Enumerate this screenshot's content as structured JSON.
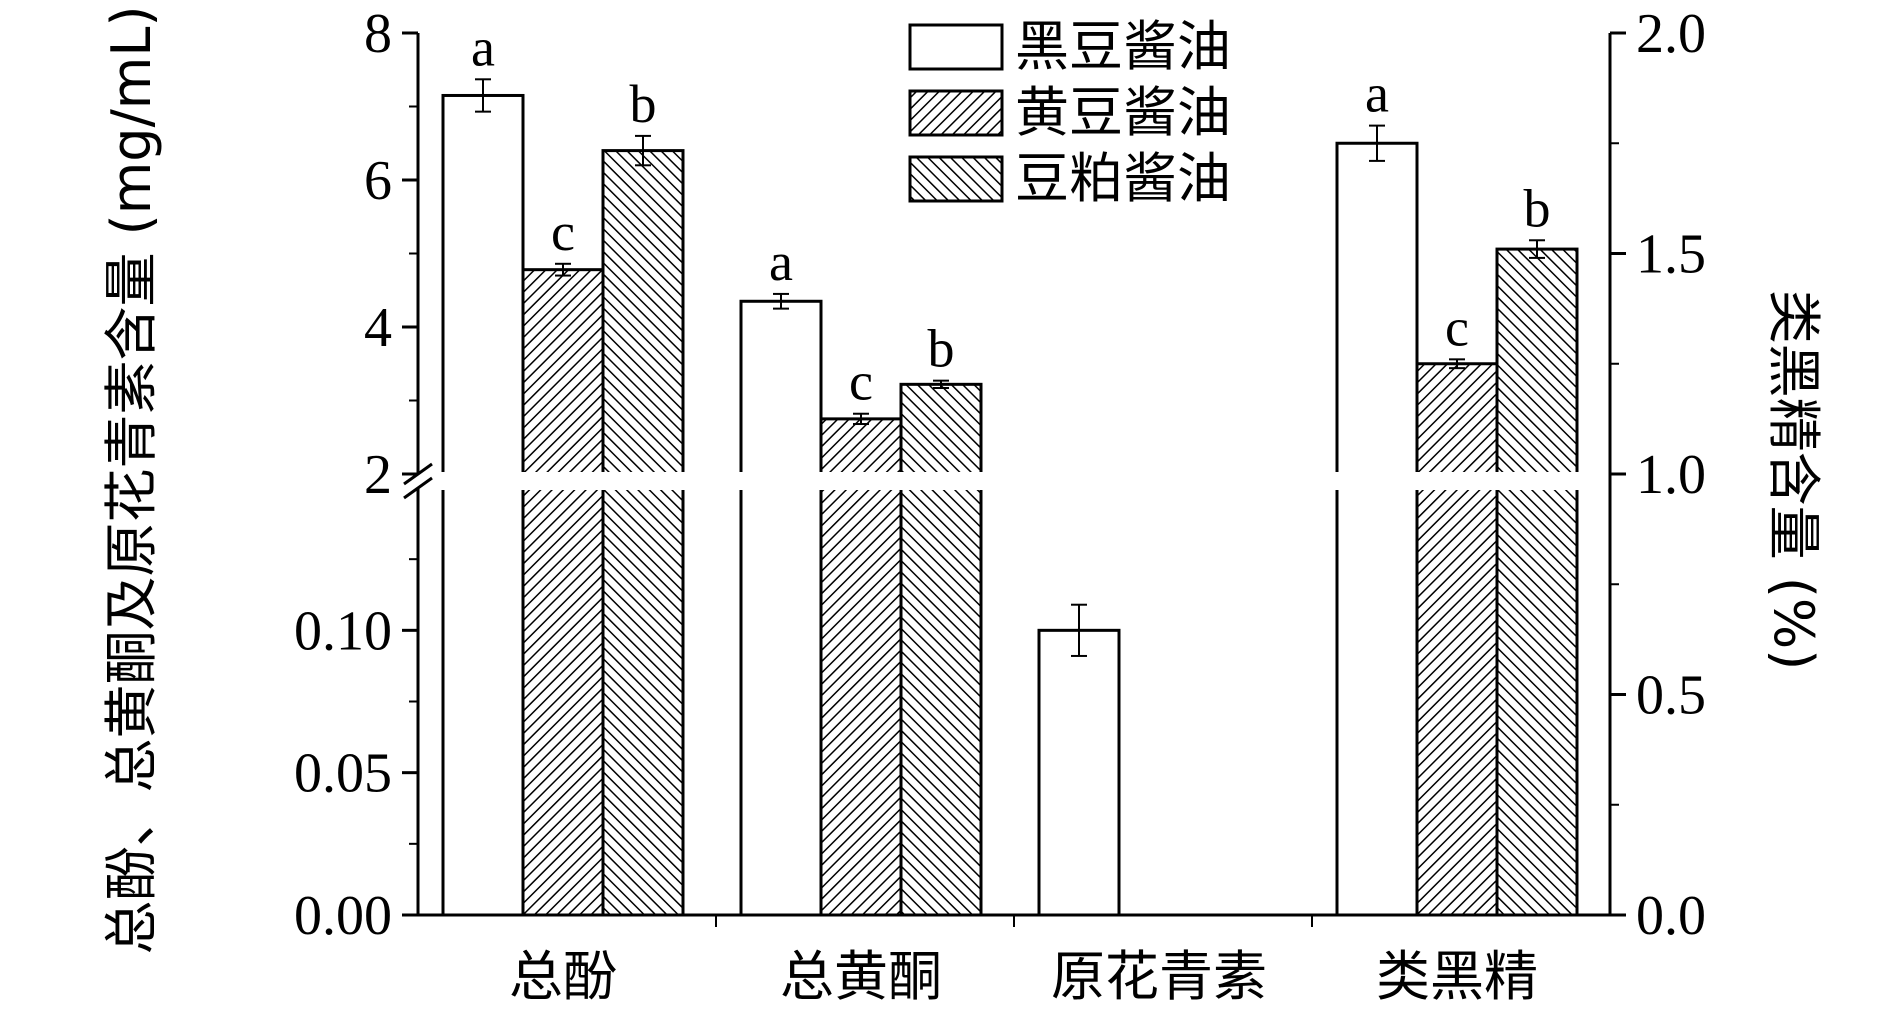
{
  "chart_data": {
    "type": "bar",
    "categories": [
      "总酚",
      "总黄酮",
      "原花青素",
      "类黑精"
    ],
    "series": [
      {
        "name": "黑豆酱油",
        "pattern": "none"
      },
      {
        "name": "黄豆酱油",
        "pattern": "hatch-forward"
      },
      {
        "name": "豆粕酱油",
        "pattern": "hatch-backward"
      }
    ],
    "bars": [
      {
        "category": 0,
        "series": 0,
        "axis": "left",
        "value": 7.15,
        "error": 0.22,
        "letter": "a"
      },
      {
        "category": 0,
        "series": 1,
        "axis": "left",
        "value": 4.78,
        "error": 0.08,
        "letter": "c"
      },
      {
        "category": 0,
        "series": 2,
        "axis": "left",
        "value": 6.4,
        "error": 0.2,
        "letter": "b"
      },
      {
        "category": 1,
        "series": 0,
        "axis": "left",
        "value": 4.35,
        "error": 0.1,
        "letter": "a"
      },
      {
        "category": 1,
        "series": 1,
        "axis": "left",
        "value": 2.75,
        "error": 0.07,
        "letter": "c"
      },
      {
        "category": 1,
        "series": 2,
        "axis": "left",
        "value": 3.22,
        "error": 0.05,
        "letter": "b"
      },
      {
        "category": 2,
        "series": 0,
        "axis": "left",
        "value": 0.1,
        "error": 0.009,
        "letter": ""
      },
      {
        "category": 3,
        "series": 0,
        "axis": "right",
        "value": 1.75,
        "error": 0.04,
        "letter": "a"
      },
      {
        "category": 3,
        "series": 1,
        "axis": "right",
        "value": 1.25,
        "error": 0.01,
        "letter": "c"
      },
      {
        "category": 3,
        "series": 2,
        "axis": "right",
        "value": 1.51,
        "error": 0.02,
        "letter": "b"
      }
    ],
    "left_axis": {
      "label": "总酚、总黄酮及原花青素含量 (mg/mL)",
      "broken": true,
      "lower_range": [
        0,
        0.15
      ],
      "lower_ticks": [
        {
          "value": 0,
          "label": "0.00"
        },
        {
          "value": 0.05,
          "label": "0.05"
        },
        {
          "value": 0.1,
          "label": "0.10"
        }
      ],
      "upper_range": [
        2,
        8
      ],
      "upper_ticks": [
        {
          "value": 2,
          "label": "2"
        },
        {
          "value": 4,
          "label": "4"
        },
        {
          "value": 6,
          "label": "6"
        },
        {
          "value": 8,
          "label": "8"
        }
      ]
    },
    "right_axis": {
      "label": "类黑精含量 (%)",
      "range": [
        0,
        2
      ],
      "ticks": [
        {
          "value": 0,
          "label": "0.0"
        },
        {
          "value": 0.5,
          "label": "0.5"
        },
        {
          "value": 1,
          "label": "1.0"
        },
        {
          "value": 1.5,
          "label": "1.5"
        },
        {
          "value": 2,
          "label": "2.0"
        }
      ]
    },
    "legend": {
      "position": "top-center"
    }
  }
}
